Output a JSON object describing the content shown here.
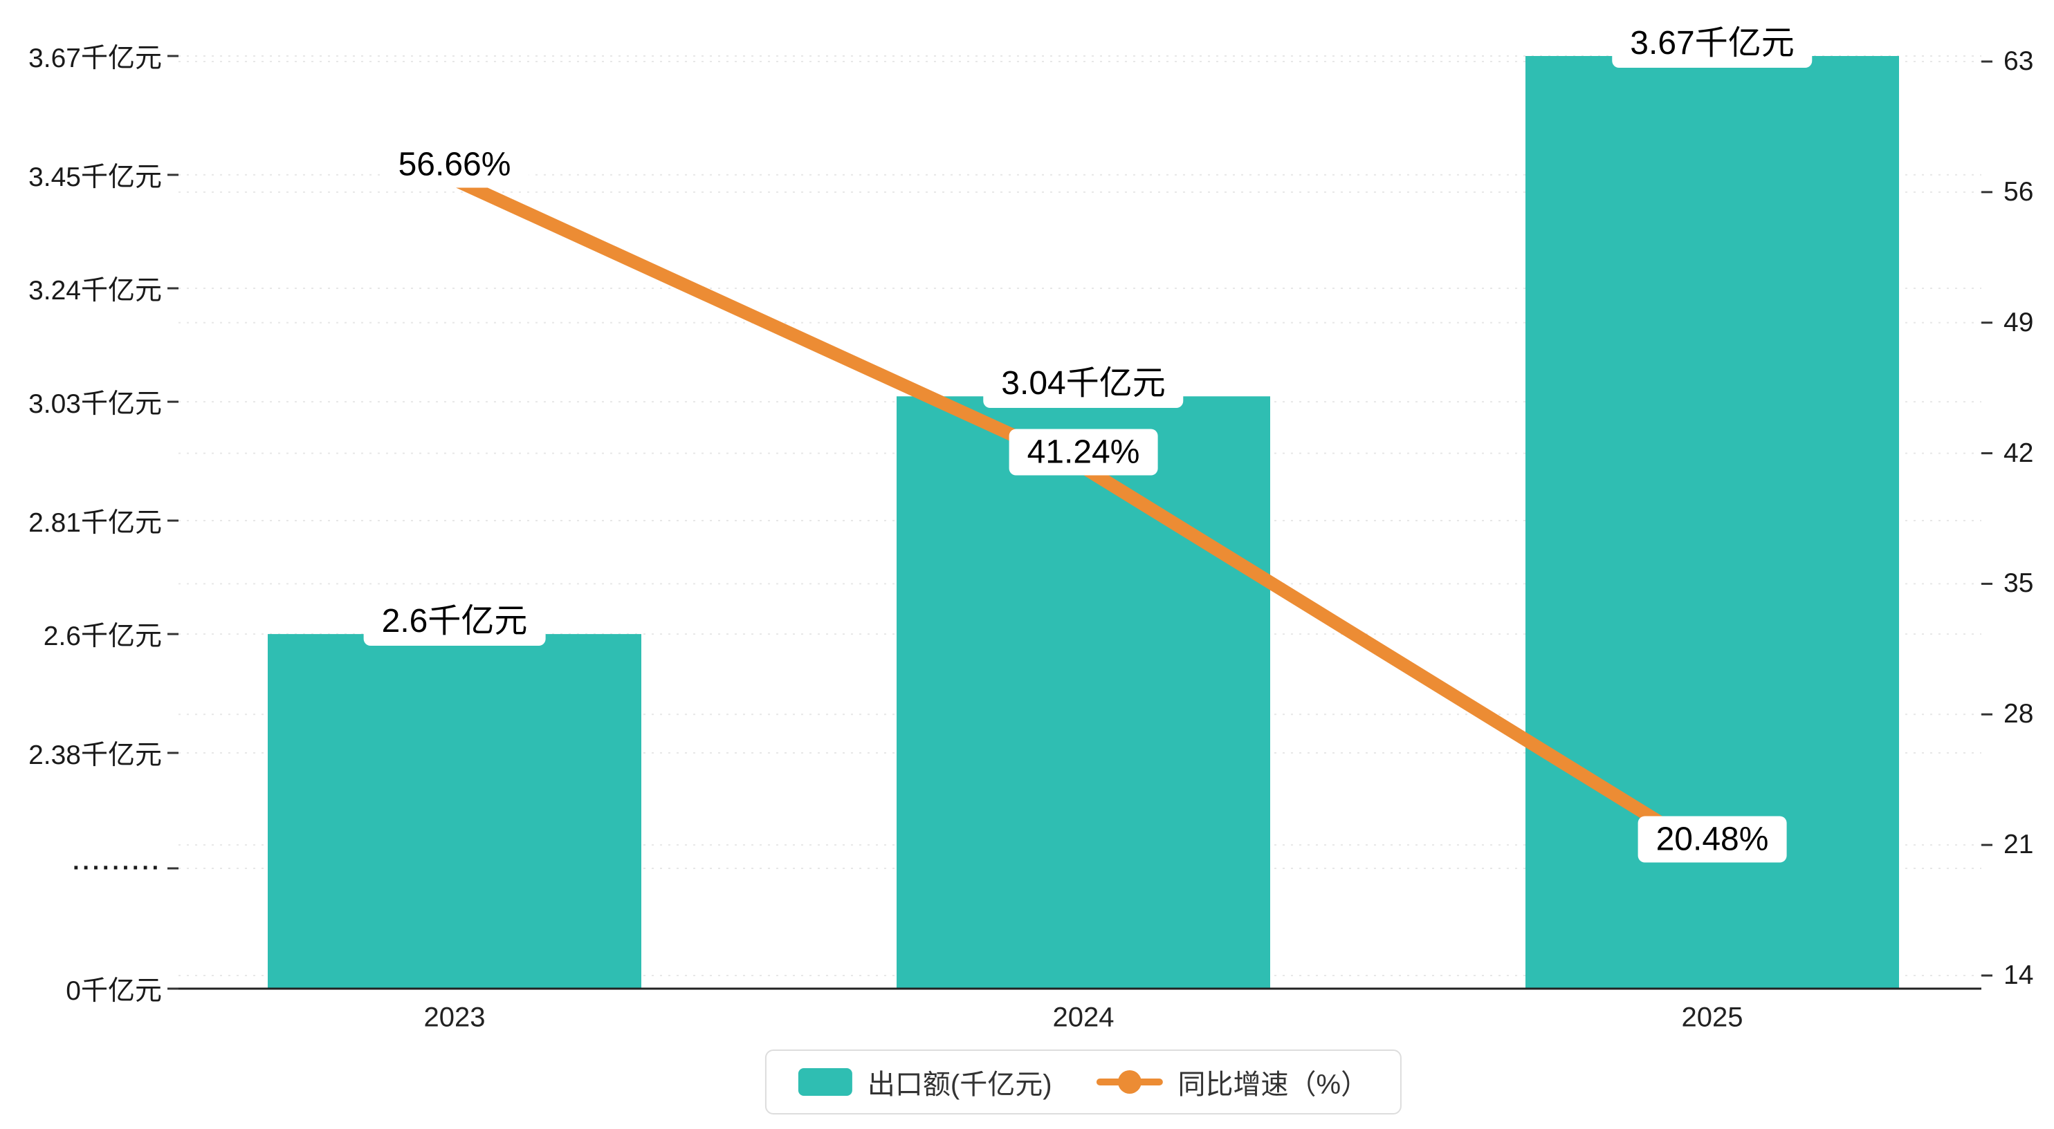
{
  "chart_data": {
    "type": "bar",
    "title": "",
    "categories": [
      "2023",
      "2024",
      "2025"
    ],
    "series": [
      {
        "name": "出口额(千亿元)",
        "type": "bar",
        "axis": "left",
        "values": [
          2.6,
          3.04,
          3.67
        ],
        "labels": [
          "2.6千亿元",
          "3.04千亿元",
          "3.67千亿元"
        ],
        "color": "#2fbeb2"
      },
      {
        "name": "同比增速（%）",
        "type": "line",
        "axis": "right",
        "values": [
          56.66,
          41.24,
          20.48
        ],
        "labels": [
          "56.66%",
          "41.24%",
          "20.48%"
        ],
        "color": "#ec8c34"
      }
    ],
    "left_axis": {
      "tick_labels": [
        "3.67千亿元",
        "3.45千亿元",
        "3.24千亿元",
        "3.03千亿元",
        "2.81千亿元",
        "2.6千亿元",
        "2.38千亿元",
        "·········",
        "0千亿元"
      ],
      "tick_values": [
        3.67,
        3.45,
        3.24,
        3.03,
        2.81,
        2.6,
        2.38,
        null,
        0
      ],
      "has_break": true
    },
    "right_axis": {
      "tick_labels": [
        "63",
        "56",
        "49",
        "42",
        "35",
        "28",
        "21",
        "14"
      ],
      "tick_values": [
        63,
        56,
        49,
        42,
        35,
        28,
        21,
        14
      ]
    },
    "legend": {
      "position": "bottom",
      "items": [
        {
          "label": "出口额(千亿元)",
          "marker": "bar",
          "color": "#2fbeb2"
        },
        {
          "label": "同比增速（%）",
          "marker": "line-dot",
          "color": "#ec8c34"
        }
      ]
    },
    "grid": true
  },
  "colors": {
    "bar": "#2fbeb2",
    "line": "#ec8c34",
    "axis": "#222222",
    "grid": "#e0e0e0",
    "text": "#1a1a1a"
  }
}
